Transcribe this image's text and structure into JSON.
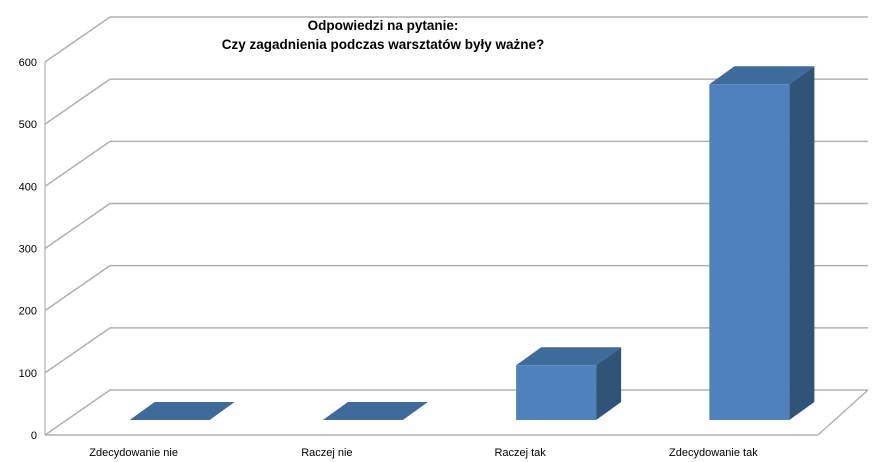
{
  "chart_data": {
    "type": "bar",
    "title_lines": [
      "Odpowiedzi na pytanie:",
      "Czy zagadnienia podczas warsztatów były ważne?"
    ],
    "categories": [
      "Zdecydowanie nie",
      "Raczej nie",
      "Raczej tak",
      "Zdecydowanie tak"
    ],
    "values": [
      0,
      0,
      88,
      540
    ],
    "yticks": [
      "0",
      "100",
      "200",
      "300",
      "400",
      "500",
      "600"
    ],
    "ylim": [
      0,
      600
    ],
    "grid": true,
    "style": "3d-column",
    "bar_color": "#4f81bd",
    "bar_side_color": "#2f5477",
    "bar_top_color": "#3e6b9a"
  }
}
